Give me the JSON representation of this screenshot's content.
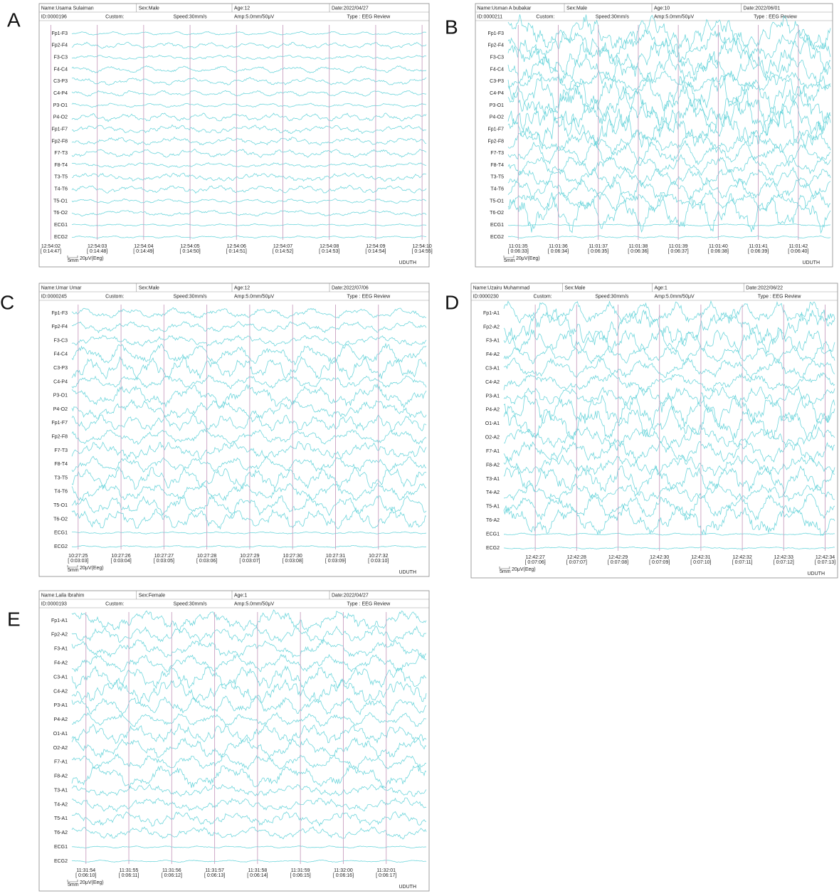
{
  "panels": [
    {
      "letter": "A",
      "header": {
        "name": "Name:Usama Sulaiman",
        "sex": "Sex:Male",
        "age": "Age:12",
        "date": "Date:2022/04/27",
        "id": "ID:0000196",
        "custom": "Custom:",
        "speed": "Speed:30mm/s",
        "amp": "Amp:5.0mm/50μV",
        "type": "Type : EEG Review"
      },
      "channels": [
        "Fp1-F3",
        "Fp2-F4",
        "F3-C3",
        "F4-C4",
        "C3-P3",
        "C4-P4",
        "P3-O1",
        "P4-O2",
        "Fp1-F7",
        "Fp2-F8",
        "F7-T3",
        "F8-T4",
        "T3-T5",
        "T4-T6",
        "T5-O1",
        "T6-O2",
        "ECG1",
        "ECG2"
      ],
      "times": [
        {
          "time": "12:54:02",
          "elapsed": "[ 0:14:47]"
        },
        {
          "time": "12:54:03",
          "elapsed": "[ 0:14:48]"
        },
        {
          "time": "12:54:04",
          "elapsed": "[ 0:14:49]"
        },
        {
          "time": "12:54:05",
          "elapsed": "[ 0:14:50]"
        },
        {
          "time": "12:54:06",
          "elapsed": "[ 0:14:51]"
        },
        {
          "time": "12:54:07",
          "elapsed": "[ 0:14:52]"
        },
        {
          "time": "12:54:08",
          "elapsed": "[ 0:14:53]"
        },
        {
          "time": "12:54:09",
          "elapsed": "[ 0:14:54]"
        },
        {
          "time": "12:54:10",
          "elapsed": "[ 0:14:55]"
        }
      ],
      "scale_length": "5mm",
      "scale_amp": "20μV(Eeg)",
      "footer": "UDUTH"
    },
    {
      "letter": "B",
      "header": {
        "name": "Name:Usman A bubakar",
        "sex": "Sex:Male",
        "age": "Age:10",
        "date": "Date:2022/06/01",
        "id": "ID:0000211",
        "custom": "Custom:",
        "speed": "Speed:30mm/s",
        "amp": "Amp:5.0mm/50μV",
        "type": "Type : EEG Review"
      },
      "channels": [
        "Fp1-F3",
        "Fp2-F4",
        "F3-C3",
        "F4-C4",
        "C3-P3",
        "C4-P4",
        "P3-O1",
        "P4-O2",
        "Fp1-F7",
        "Fp2-F8",
        "F7-T3",
        "F8-T4",
        "T3-T5",
        "T4-T6",
        "T5-O1",
        "T6-O2",
        "ECG1",
        "ECG2"
      ],
      "times": [
        {
          "time": "11:01:35",
          "elapsed": "[ 0:06:33]"
        },
        {
          "time": "11:01:36",
          "elapsed": "[ 0:06:34]"
        },
        {
          "time": "11:01:37",
          "elapsed": "[ 0:06:35]"
        },
        {
          "time": "11:01:38",
          "elapsed": "[ 0:06:36]"
        },
        {
          "time": "11:01:39",
          "elapsed": "[ 0:06:37]"
        },
        {
          "time": "11:01:40",
          "elapsed": "[ 0:06:38]"
        },
        {
          "time": "11:01:41",
          "elapsed": "[ 0:06:39]"
        },
        {
          "time": "11:01:42",
          "elapsed": "[ 0:06:40]"
        }
      ],
      "scale_length": "5mm",
      "scale_amp": "20μV(Eeg)",
      "footer": "UDUTH"
    },
    {
      "letter": "C",
      "header": {
        "name": "Name:Umar Umar",
        "sex": "Sex:Male",
        "age": "Age:12",
        "date": "Date:2022/07/06",
        "id": "ID:0000245",
        "custom": "Custom:",
        "speed": "Speed:30mm/s",
        "amp": "Amp:5.0mm/50μV",
        "type": "Type : EEG Review"
      },
      "channels": [
        "Fp1-F3",
        "Fp2-F4",
        "F3-C3",
        "F4-C4",
        "C3-P3",
        "C4-P4",
        "P3-O1",
        "P4-O2",
        "Fp1-F7",
        "Fp2-F8",
        "F7-T3",
        "F8-T4",
        "T3-T5",
        "T4-T6",
        "T5-O1",
        "T6-O2",
        "ECG1",
        "ECG2"
      ],
      "times": [
        {
          "time": "10:27:25",
          "elapsed": "[ 0:03:03]"
        },
        {
          "time": "10:27:26",
          "elapsed": "[ 0:03:04]"
        },
        {
          "time": "10:27:27",
          "elapsed": "[ 0:03:05]"
        },
        {
          "time": "10:27:28",
          "elapsed": "[ 0:03:06]"
        },
        {
          "time": "10:27:29",
          "elapsed": "[ 0:03:07]"
        },
        {
          "time": "10:27:30",
          "elapsed": "[ 0:03:08]"
        },
        {
          "time": "10:27:31",
          "elapsed": "[ 0:03:09]"
        },
        {
          "time": "10:27:32",
          "elapsed": "[ 0:03:10]"
        }
      ],
      "scale_length": "5mm",
      "scale_amp": "20μV(Eeg)",
      "footer": "UDUTH"
    },
    {
      "letter": "D",
      "header": {
        "name": "Name:Uzairu Muhammad",
        "sex": "Sex:Male",
        "age": "Age:1",
        "date": "Date:2022/06/22",
        "id": "ID:0000230",
        "custom": "Custom:",
        "speed": "Speed:30mm/s",
        "amp": "Amp:5.0mm/50μV",
        "type": "Type : EEG Review"
      },
      "channels": [
        "Fp1-A1",
        "Fp2-A2",
        "F3-A1",
        "F4-A2",
        "C3-A1",
        "C4-A2",
        "P3-A1",
        "P4-A2",
        "O1-A1",
        "O2-A2",
        "F7-A1",
        "F8-A2",
        "T3-A1",
        "T4-A2",
        "T5-A1",
        "T6-A2",
        "ECG1",
        "ECG2"
      ],
      "times": [
        {
          "time": "12:42:27",
          "elapsed": "[ 0:07:06]"
        },
        {
          "time": "12:42:28",
          "elapsed": "[ 0:07:07]"
        },
        {
          "time": "12:42:29",
          "elapsed": "[ 0:07:08]"
        },
        {
          "time": "12:42:30",
          "elapsed": "[ 0:07:09]"
        },
        {
          "time": "12:42:31",
          "elapsed": "[ 0:07:10]"
        },
        {
          "time": "12:42:32",
          "elapsed": "[ 0:07:11]"
        },
        {
          "time": "12:42:33",
          "elapsed": "[ 0:07:12]"
        },
        {
          "time": "12:42:34",
          "elapsed": "[ 0:07:13]"
        }
      ],
      "scale_length": "5mm",
      "scale_amp": "20μV(Eeg)",
      "footer": "UDUTH"
    },
    {
      "letter": "E",
      "header": {
        "name": "Name:Laila Ibrahim",
        "sex": "Sex:Female",
        "age": "Age:1",
        "date": "Date:2022/04/27",
        "id": "ID:0000193",
        "custom": "Custom:",
        "speed": "Speed:30mm/s",
        "amp": "Amp:5.0mm/50μV",
        "type": "Type : EEG Review"
      },
      "channels": [
        "Fp1-A1",
        "Fp2-A2",
        "F3-A1",
        "F4-A2",
        "C3-A1",
        "C4-A2",
        "P3-A1",
        "P4-A2",
        "O1-A1",
        "O2-A2",
        "F7-A1",
        "F8-A2",
        "T3-A1",
        "T4-A2",
        "T5-A1",
        "T6-A2",
        "ECG1",
        "ECG2"
      ],
      "times": [
        {
          "time": "11:31:54",
          "elapsed": "[ 0:06:10]"
        },
        {
          "time": "11:31:55",
          "elapsed": "[ 0:06:11]"
        },
        {
          "time": "11:31:56",
          "elapsed": "[ 0:06:12]"
        },
        {
          "time": "11:31:57",
          "elapsed": "[ 0:06:13]"
        },
        {
          "time": "11:31:58",
          "elapsed": "[ 0:06:14]"
        },
        {
          "time": "11:31:59",
          "elapsed": "[ 0:06:15]"
        },
        {
          "time": "11:32:00",
          "elapsed": "[ 0:06:16]"
        },
        {
          "time": "11:32:01",
          "elapsed": "[ 0:06:17]"
        }
      ],
      "scale_length": "5mm",
      "scale_amp": "20μV(Eeg)",
      "footer": "UDUTH"
    }
  ]
}
